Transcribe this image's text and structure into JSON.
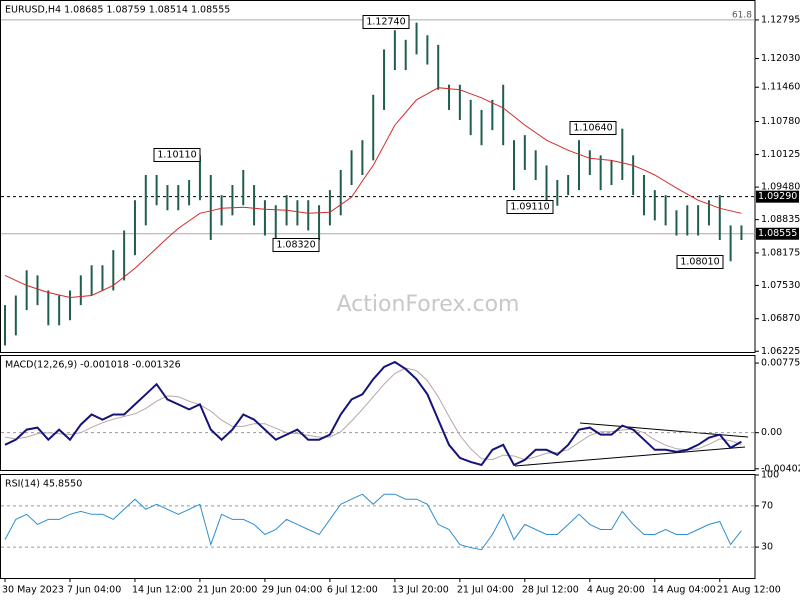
{
  "chart_data": [
    {
      "type": "ohlc",
      "title": "EURUSD,H4 1.08685 1.08759 1.08514 1.08555",
      "watermark": "ActionForex.com",
      "color": "#1f5e4e",
      "categories": [
        "30 May 2023",
        null,
        null,
        null,
        null,
        null,
        "7 Jun 04:00",
        null,
        null,
        null,
        null,
        null,
        "14 Jun 12:00",
        null,
        null,
        null,
        null,
        null,
        "21 Jun 20:00",
        null,
        null,
        null,
        null,
        null,
        "29 Jun 04:00",
        null,
        null,
        null,
        null,
        null,
        "6 Jul 12:00",
        null,
        null,
        null,
        null,
        null,
        "13 Jul 20:00",
        null,
        null,
        null,
        null,
        null,
        "21 Jul 04:00",
        null,
        null,
        null,
        null,
        null,
        "28 Jul 12:00",
        null,
        null,
        null,
        null,
        null,
        "4 Aug 20:00",
        null,
        null,
        null,
        null,
        null,
        "14 Aug 04:00",
        null,
        null,
        null,
        null,
        null,
        "21 Aug 12:00",
        null,
        null
      ],
      "high": [
        1.0714,
        1.0733,
        1.0783,
        1.0773,
        1.0743,
        1.0733,
        1.0743,
        1.0773,
        1.0793,
        1.0793,
        1.0823,
        1.0862,
        1.0922,
        1.0972,
        1.0972,
        1.0952,
        1.0952,
        1.0962,
        1.1011,
        1.0972,
        1.0932,
        1.0952,
        1.0982,
        1.0952,
        1.0922,
        1.0912,
        1.0932,
        1.0922,
        1.0922,
        1.0912,
        1.0942,
        1.0982,
        1.1021,
        1.1041,
        1.1131,
        1.1221,
        1.1259,
        1.124,
        1.1274,
        1.1249,
        1.123,
        1.1151,
        1.1151,
        1.1121,
        1.1101,
        1.1121,
        1.1151,
        1.1041,
        1.1051,
        1.1021,
        1.0991,
        1.0962,
        1.0972,
        1.1041,
        1.1021,
        1.1011,
        1.1001,
        1.1064,
        1.1011,
        1.0972,
        1.0942,
        1.0932,
        1.0902,
        1.0912,
        1.0912,
        1.0922,
        1.0932,
        1.0872,
        1.0872
      ],
      "low": [
        1.0634,
        1.0654,
        1.0704,
        1.0714,
        1.0674,
        1.0674,
        1.0684,
        1.0714,
        1.0733,
        1.0743,
        1.0743,
        1.0763,
        1.0813,
        1.0872,
        1.0912,
        1.0902,
        1.0902,
        1.0912,
        1.0922,
        1.0843,
        1.0872,
        1.0892,
        1.0912,
        1.0872,
        1.0852,
        1.0832,
        1.0872,
        1.0872,
        1.0862,
        1.0843,
        1.0872,
        1.0892,
        1.0952,
        1.0972,
        1.1001,
        1.1101,
        1.118,
        1.118,
        1.1211,
        1.1191,
        1.1141,
        1.1101,
        1.1081,
        1.1051,
        1.1031,
        1.1061,
        1.1031,
        1.0942,
        1.0982,
        1.0962,
        1.0922,
        1.0911,
        1.0932,
        1.0942,
        1.0972,
        1.0942,
        1.0952,
        1.0962,
        1.0932,
        1.0892,
        1.0882,
        1.0872,
        1.0852,
        1.0852,
        1.0852,
        1.0872,
        1.0843,
        1.0801,
        1.0843
      ],
      "ma": {
        "color": "#d42a2a",
        "values": [
          1.0773,
          1.0763,
          1.0753,
          1.0746,
          1.0739,
          1.0734,
          1.0729,
          1.0731,
          1.0733,
          1.0743,
          1.0753,
          1.077,
          1.0787,
          1.0807,
          1.0827,
          1.0847,
          1.0866,
          1.0881,
          1.0896,
          1.0901,
          1.0906,
          1.0907,
          1.0908,
          1.0906,
          1.0904,
          1.0903,
          1.0902,
          1.0899,
          1.0896,
          1.0897,
          1.0898,
          1.0913,
          1.0928,
          1.096,
          1.0991,
          1.1031,
          1.1071,
          1.1096,
          1.1121,
          1.1133,
          1.1145,
          1.1143,
          1.1141,
          1.1133,
          1.1125,
          1.1115,
          1.1105,
          1.1088,
          1.1071,
          1.1056,
          1.1041,
          1.1031,
          1.1021,
          1.1013,
          1.1005,
          1.1003,
          1.1001,
          1.0996,
          1.0991,
          1.0982,
          1.0972,
          1.0959,
          1.0946,
          1.0934,
          1.0922,
          1.0914,
          1.0906,
          1.0901,
          1.0896
        ]
      },
      "ylim": [
        1.0623,
        1.1317
      ],
      "yticks": [
        1.12795,
        {
          "value": 1.1203,
          "label": "1.12030"
        },
        {
          "value": 1.1146,
          "label": "1.11460"
        },
        {
          "value": 1.1078,
          "label": "1.10780"
        },
        1.10125,
        {
          "value": 1.0948,
          "label": "1.09480"
        },
        1.08835,
        1.08175,
        {
          "value": 1.0753,
          "label": "1.07530"
        },
        {
          "value": 1.0687,
          "label": "1.06870"
        },
        1.06225
      ],
      "levels": [
        {
          "value": 1.12795,
          "label": "61.8",
          "style": "fib"
        },
        {
          "value": 1.0929,
          "label": "1.09290",
          "style": "dashed"
        },
        {
          "value": 1.08555,
          "label": "1.08555",
          "style": "current"
        }
      ],
      "annotations": [
        "1.12740",
        "1.10110",
        "1.08320",
        "1.09110",
        "1.10640",
        "1.08010"
      ]
    },
    {
      "type": "line",
      "title": "MACD(12,26,9) -0.001018 -0.001326",
      "series": [
        {
          "color": "#14147a",
          "values": [
            -0.00135,
            -0.00079,
            0.00034,
            0.00056,
            -0.00079,
            0.00034,
            -0.00079,
            0.0009,
            0.00202,
            0.00146,
            0.00202,
            0.00202,
            0.00315,
            0.00427,
            0.0054,
            0.00371,
            0.00315,
            0.00259,
            0.00315,
            0.00034,
            -0.00079,
            0.00034,
            0.00202,
            0.00146,
            0.00034,
            -0.00079,
            -0.00022,
            0.00034,
            -0.00079,
            -0.00079,
            -0.00022,
            0.00202,
            0.00371,
            0.00427,
            0.00596,
            0.00731,
            0.00787,
            0.00708,
            0.00596,
            0.00427,
            0.00146,
            -0.00135,
            -0.00281,
            -0.00326,
            -0.0036,
            -0.00191,
            -0.00135,
            -0.0036,
            -0.00303,
            -0.00191,
            -0.00191,
            -0.00247,
            -0.00135,
            0.00034,
            0.00056,
            -0.00022,
            -0.00022,
            0.00079,
            0.00034,
            -0.00079,
            -0.00191,
            -0.00191,
            -0.00214,
            -0.00191,
            -0.00135,
            -0.00056,
            -0.00022,
            -0.00169,
            -0.00102
          ]
        },
        {
          "color": "#b9a6a6",
          "values": [
            -0.0005,
            -0.0007,
            -0.0005,
            -0.0001,
            0.0,
            -0.0001,
            -0.0002,
            0.0,
            0.0006,
            0.0011,
            0.0015,
            0.0018,
            0.0021,
            0.0027,
            0.0035,
            0.0041,
            0.004,
            0.0035,
            0.0031,
            0.0024,
            0.0014,
            0.0007,
            0.0007,
            0.001,
            0.001,
            0.0005,
            0.0,
            -0.0001,
            -0.0003,
            -0.0005,
            -0.0005,
            0.0001,
            0.0013,
            0.0026,
            0.004,
            0.0054,
            0.0066,
            0.0072,
            0.0069,
            0.0058,
            0.004,
            0.0018,
            -0.0003,
            -0.0018,
            -0.0029,
            -0.003,
            -0.0025,
            -0.0026,
            -0.003,
            -0.0027,
            -0.0023,
            -0.0022,
            -0.0019,
            -0.0011,
            -0.0003,
            0.0001,
            0.0001,
            0.0003,
            0.0004,
            0.0,
            -0.0008,
            -0.0014,
            -0.0018,
            -0.0019,
            -0.0018,
            -0.0013,
            -0.0007,
            -0.0009,
            -0.00133
          ]
        }
      ],
      "ylim": [
        -0.00416,
        0.00854
      ],
      "yticks": [
        0.007753,
        {
          "value": 0,
          "label": "0.00"
        },
        -0.004027
      ],
      "dashed": [
        1
      ]
    },
    {
      "type": "line",
      "title": "RSI(14) 45.8550",
      "series": [
        {
          "color": "#2f8fd0",
          "values": [
            37.3,
            56.9,
            61.8,
            52,
            56.9,
            56.9,
            61.8,
            64.7,
            61.8,
            61.8,
            56.9,
            66.7,
            76.5,
            66.7,
            71.6,
            66.7,
            61.8,
            66.7,
            71.6,
            32.4,
            61.8,
            56.9,
            56.9,
            52,
            42.2,
            47.1,
            56.9,
            52,
            47.1,
            42.2,
            56.9,
            71.6,
            76.5,
            81.4,
            71.6,
            81.4,
            81.4,
            76.5,
            76.5,
            71.6,
            52,
            47.1,
            32.4,
            29.4,
            27.5,
            42.2,
            61.8,
            37.3,
            52,
            47.1,
            42.2,
            42.2,
            52,
            61.8,
            52,
            47.1,
            47.1,
            64.7,
            52,
            42.2,
            42.2,
            47.1,
            42.2,
            42.2,
            47.1,
            52,
            54.9,
            32.4,
            45.9
          ]
        }
      ],
      "ylim": [
        0,
        100
      ],
      "yticks": [
        100,
        70,
        30
      ],
      "dashed": [
        1,
        2
      ]
    }
  ]
}
